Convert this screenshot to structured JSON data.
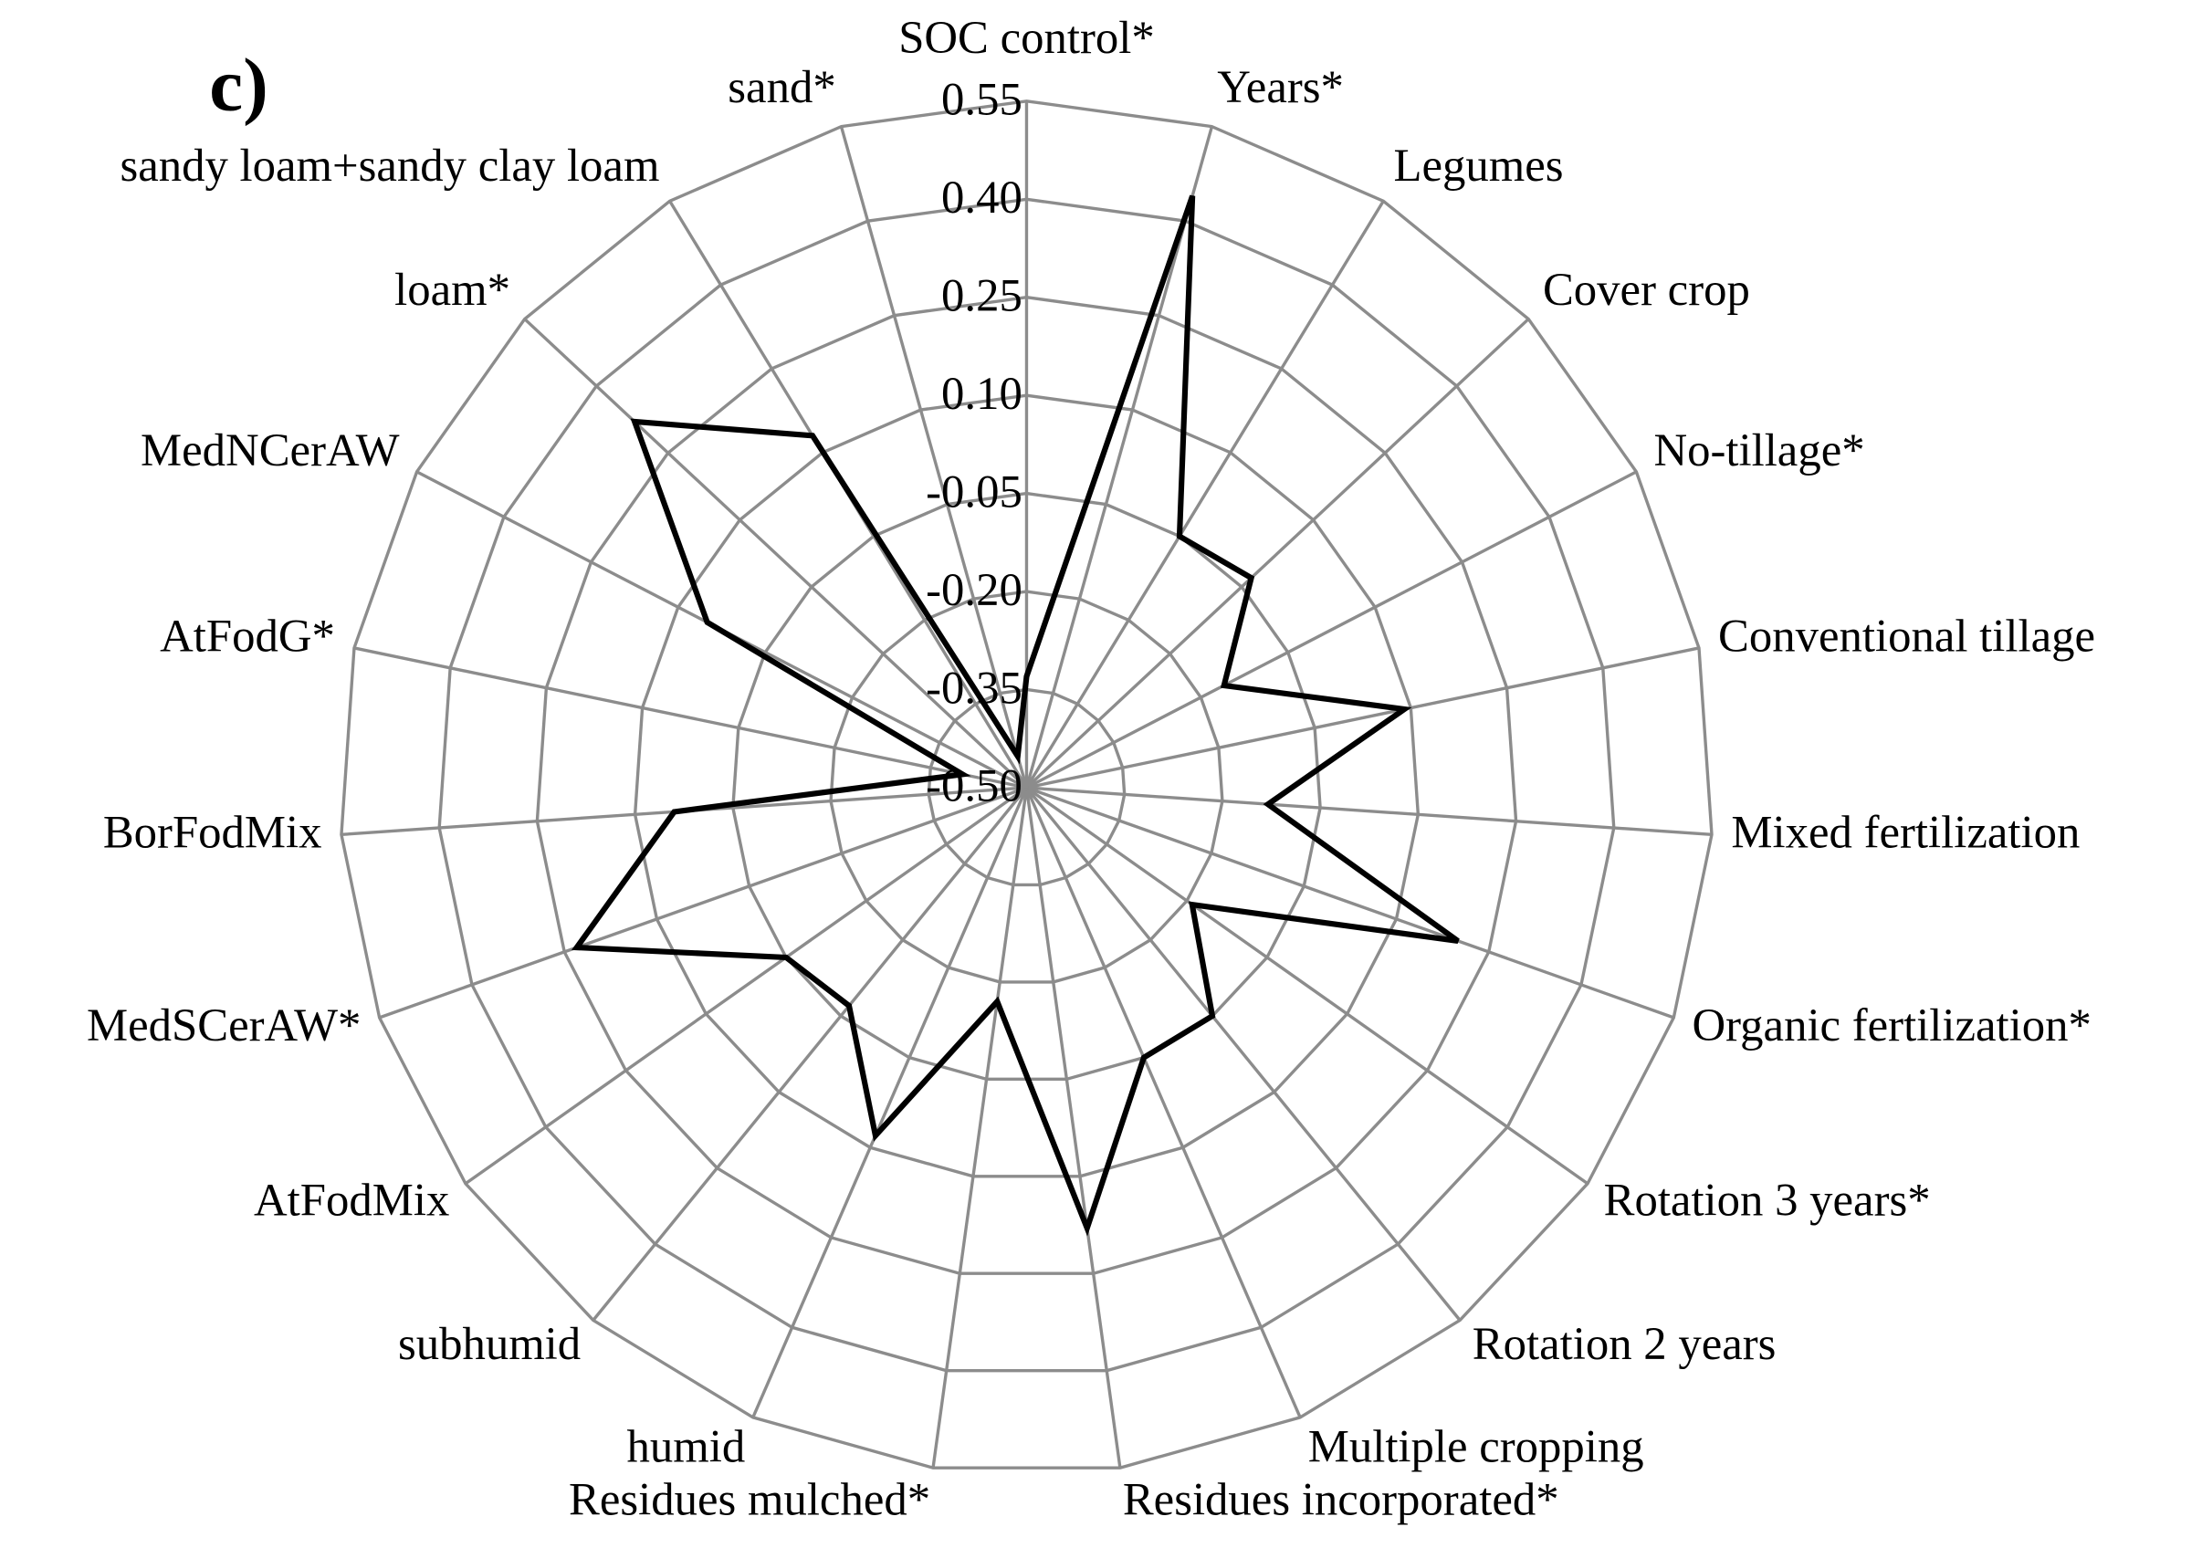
{
  "chart_data": {
    "type": "radar",
    "panel_label": "c)",
    "categories": [
      "SOC control*",
      "Years*",
      "Legumes",
      "Cover crop",
      "No-tillage*",
      "Conventional tillage",
      "Mixed fertilization",
      "Organic fertilization*",
      "Rotation 3 years*",
      "Rotation 2 years",
      "Multiple cropping",
      "Residues incorporated*",
      "Residues mulched*",
      "humid",
      "subhumid",
      "AtFodMix",
      "MedSCerAW*",
      "BorFodMix",
      "AtFodG*",
      "MedNCerAW",
      "loam*",
      "sandy loam+sandy clay loam",
      "sand*"
    ],
    "values": [
      -0.33,
      0.44,
      -0.05,
      -0.03,
      -0.16,
      0.09,
      -0.13,
      0.2,
      -0.19,
      -0.05,
      -0.05,
      0.18,
      -0.17,
      0.08,
      -0.07,
      -0.05,
      0.23,
      0.04,
      -0.4,
      0.05,
      0.32,
      0.13,
      -0.45
    ],
    "color": "#000000",
    "grid_color": "#8c8c8c",
    "ylim": [
      -0.5,
      0.55
    ],
    "yticks": [
      {
        "value": -0.5,
        "label": "-0.50"
      },
      -0.35,
      {
        "value": -0.2,
        "label": "-0.20"
      },
      -0.05,
      {
        "value": 0.1,
        "label": "0.10"
      },
      0.25,
      {
        "value": 0.4,
        "label": "0.40"
      },
      0.55
    ],
    "grid": true
  }
}
